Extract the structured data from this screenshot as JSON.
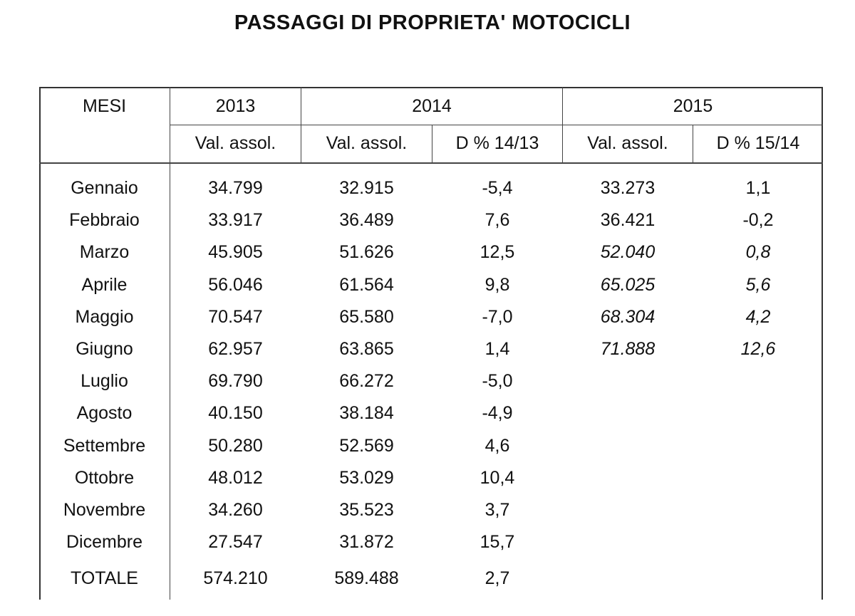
{
  "title": "PASSAGGI DI PROPRIETA' MOTOCICLI",
  "header": {
    "mesi": "MESI",
    "y2013": "2013",
    "y2014": "2014",
    "y2015": "2015",
    "val_assol": "Val. assol.",
    "d_14_13": "D % 14/13",
    "d_15_14": "D % 15/14"
  },
  "rows": [
    {
      "mese": "Gennaio",
      "v2013": "34.799",
      "v2014": "32.915",
      "d1413": "-5,4",
      "v2015": "33.273",
      "d1514": "1,1"
    },
    {
      "mese": "Febbraio",
      "v2013": "33.917",
      "v2014": "36.489",
      "d1413": "7,6",
      "v2015": "36.421",
      "d1514": "-0,2"
    },
    {
      "mese": "Marzo",
      "v2013": "45.905",
      "v2014": "51.626",
      "d1413": "12,5",
      "v2015": "52.040",
      "d1514": "0,8"
    },
    {
      "mese": "Aprile",
      "v2013": "56.046",
      "v2014": "61.564",
      "d1413": "9,8",
      "v2015": "65.025",
      "d1514": "5,6"
    },
    {
      "mese": "Maggio",
      "v2013": "70.547",
      "v2014": "65.580",
      "d1413": "-7,0",
      "v2015": "68.304",
      "d1514": "4,2"
    },
    {
      "mese": "Giugno",
      "v2013": "62.957",
      "v2014": "63.865",
      "d1413": "1,4",
      "v2015": "71.888",
      "d1514": "12,6"
    },
    {
      "mese": "Luglio",
      "v2013": "69.790",
      "v2014": "66.272",
      "d1413": "-5,0",
      "v2015": "",
      "d1514": ""
    },
    {
      "mese": "Agosto",
      "v2013": "40.150",
      "v2014": "38.184",
      "d1413": "-4,9",
      "v2015": "",
      "d1514": ""
    },
    {
      "mese": "Settembre",
      "v2013": "50.280",
      "v2014": "52.569",
      "d1413": "4,6",
      "v2015": "",
      "d1514": ""
    },
    {
      "mese": "Ottobre",
      "v2013": "48.012",
      "v2014": "53.029",
      "d1413": "10,4",
      "v2015": "",
      "d1514": ""
    },
    {
      "mese": "Novembre",
      "v2013": "34.260",
      "v2014": "35.523",
      "d1413": "3,7",
      "v2015": "",
      "d1514": ""
    },
    {
      "mese": "Dicembre",
      "v2013": "27.547",
      "v2014": "31.872",
      "d1413": "15,7",
      "v2015": "",
      "d1514": ""
    }
  ],
  "totale": {
    "mese": "TOTALE",
    "v2013": "574.210",
    "v2014": "589.488",
    "d1413": "2,7"
  }
}
